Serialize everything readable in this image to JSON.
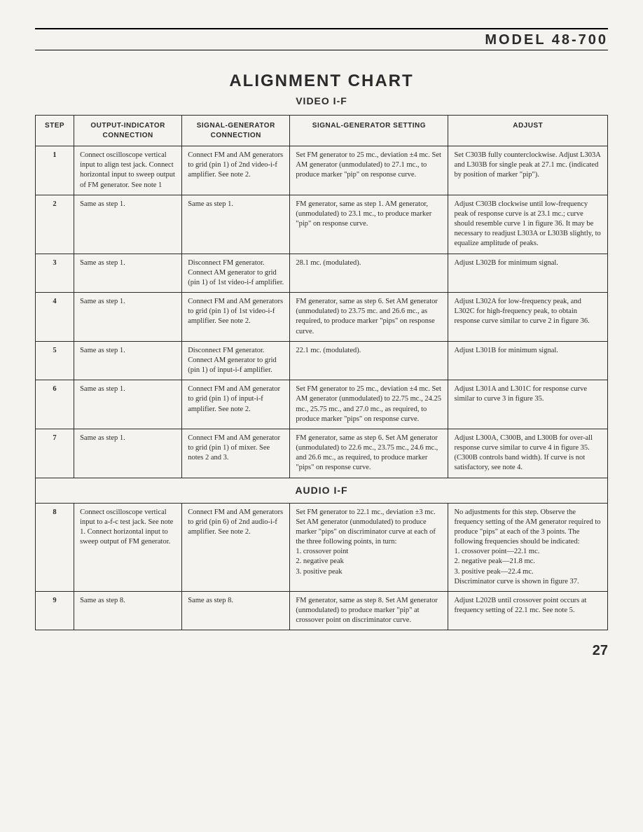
{
  "header": {
    "model": "MODEL 48-700"
  },
  "title": "ALIGNMENT CHART",
  "subtitle_video": "VIDEO I-F",
  "subtitle_audio": "AUDIO I-F",
  "columns": {
    "step": "STEP",
    "output": "OUTPUT-INDICATOR CONNECTION",
    "siggen": "SIGNAL-GENERATOR CONNECTION",
    "setting": "SIGNAL-GENERATOR SETTING",
    "adjust": "ADJUST"
  },
  "rows_video": [
    {
      "step": "1",
      "output": "Connect oscilloscope vertical input to align test jack. Connect horizontal input to sweep output of FM generator. See note 1",
      "siggen": "Connect FM and AM generators to grid (pin 1) of 2nd video-i-f amplifier. See note 2.",
      "setting": "Set FM generator to 25 mc., deviation ±4 mc. Set AM generator (unmodulated) to 27.1 mc., to produce marker \"pip\" on response curve.",
      "adjust": "Set C303B fully counterclockwise. Adjust L303A and L303B for single peak at 27.1 mc. (indicated by position of marker \"pip\")."
    },
    {
      "step": "2",
      "output": "Same as step 1.",
      "siggen": "Same as step 1.",
      "setting": "FM generator, same as step 1. AM generator, (unmodulated) to 23.1 mc., to produce marker \"pip\" on response curve.",
      "adjust": "Adjust C303B clockwise until low-frequency peak of response curve is at 23.1 mc.; curve should resemble curve 1 in figure 36. It may be necessary to readjust L303A or L303B slightly, to equalize amplitude of peaks."
    },
    {
      "step": "3",
      "output": "Same as step 1.",
      "siggen": "Disconnect FM generator. Connect AM generator to grid (pin 1) of 1st video-i-f amplifier.",
      "setting": "28.1 mc. (modulated).",
      "adjust": "Adjust L302B for minimum signal."
    },
    {
      "step": "4",
      "output": "Same as step 1.",
      "siggen": "Connect FM and AM generators to grid (pin 1) of 1st video-i-f amplifier. See note 2.",
      "setting": "FM generator, same as step 6. Set AM generator (unmodulated) to 23.75 mc. and 26.6 mc., as required, to produce marker \"pips\" on response curve.",
      "adjust": "Adjust L302A for low-frequency peak, and L302C for high-frequency peak, to obtain response curve similar to curve 2 in figure 36."
    },
    {
      "step": "5",
      "output": "Same as step 1.",
      "siggen": "Disconnect FM generator. Connect AM generator to grid (pin 1) of input-i-f amplifier.",
      "setting": "22.1 mc. (modulated).",
      "adjust": "Adjust L301B for minimum signal."
    },
    {
      "step": "6",
      "output": "Same as step 1.",
      "siggen": "Connect FM and AM generator to grid (pin 1) of input-i-f amplifier. See note 2.",
      "setting": "Set FM generator to 25 mc., deviation ±4 mc. Set AM generator (unmodulated) to 22.75 mc., 24.25 mc., 25.75 mc., and 27.0 mc., as required, to produce marker \"pips\" on response curve.",
      "adjust": "Adjust L301A and L301C for response curve similar to curve 3 in figure 35."
    },
    {
      "step": "7",
      "output": "Same as step 1.",
      "siggen": "Connect FM and AM generator to grid (pin 1) of mixer. See notes 2 and 3.",
      "setting": "FM generator, same as step 6. Set AM generator (unmodulated) to 22.6 mc., 23.75 mc., 24.6 mc., and 26.6 mc., as required, to produce marker \"pips\" on response curve.",
      "adjust": "Adjust L300A, C300B, and L300B for over-all response curve similar to curve 4 in figure 35. (C300B controls band width). If curve is not satisfactory, see note 4."
    }
  ],
  "rows_audio": [
    {
      "step": "8",
      "output": "Connect oscilloscope vertical input to a-f-c test jack. See note 1. Connect horizontal input to sweep output of FM generator.",
      "siggen": "Connect FM and AM generators to grid (pin 6) of 2nd audio-i-f amplifier. See note 2.",
      "setting": "Set FM generator to 22.1 mc., deviation ±3 mc. Set AM generator (unmodulated) to produce marker \"pips\" on discriminator curve at each of the three following points, in turn:\n  1. crossover point\n  2. negative peak\n  3. positive peak",
      "adjust": "No adjustments for this step. Observe the frequency setting of the AM generator required to produce \"pips\" at each of the 3 points. The following frequencies should be indicated:\n  1. crossover point—22.1 mc.\n  2. negative peak—21.8 mc.\n  3. positive peak—22.4 mc.\n  Discriminator curve is shown in figure 37."
    },
    {
      "step": "9",
      "output": "Same as step 8.",
      "siggen": "Same as step 8.",
      "setting": "FM generator, same as step 8. Set AM generator (unmodulated) to produce marker \"pip\" at crossover point on discriminator curve.",
      "adjust": "Adjust L202B until crossover point occurs at frequency setting of 22.1 mc. See note 5."
    }
  ],
  "page_number": "27"
}
